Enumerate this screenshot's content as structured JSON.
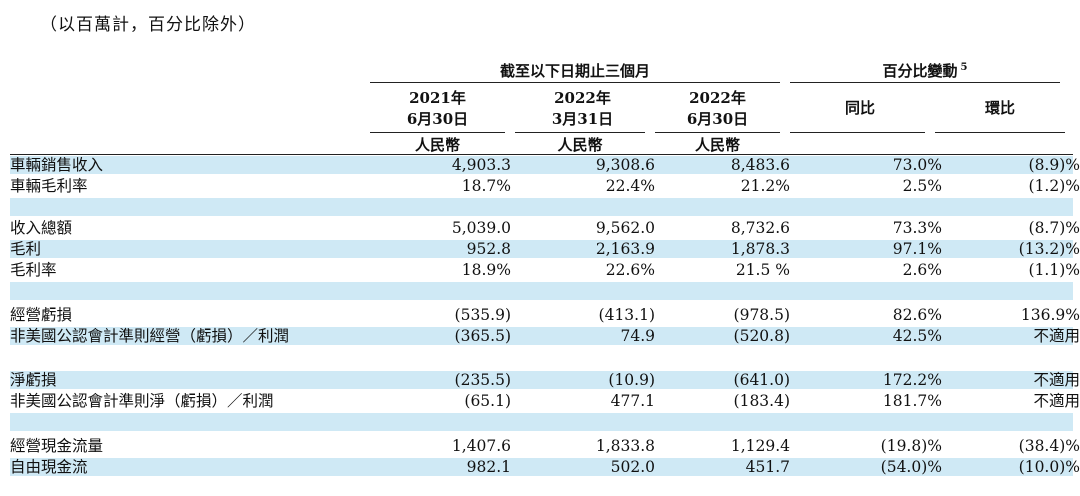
{
  "note": "（以百萬計，百分比除外）",
  "header": {
    "group1": "截至以下日期止三個月",
    "group2": "百分比變動",
    "group2_footnote": "5",
    "columns": [
      {
        "line1": "2021年",
        "line2": "6月30日",
        "currency": "人民幣"
      },
      {
        "line1": "2022年",
        "line2": "3月31日",
        "currency": "人民幣"
      },
      {
        "line1": "2022年",
        "line2": "6月30日",
        "currency": "人民幣"
      }
    ],
    "yoy": "同比",
    "qoq": "環比"
  },
  "rows": [
    {
      "label": "車輛銷售收入",
      "v": [
        "4,903.3",
        "9,308.6",
        "8,483.6",
        "73.0%",
        "(8.9)%"
      ]
    },
    {
      "label": "車輛毛利率",
      "v": [
        "18.7%",
        "22.4%",
        "21.2%",
        "2.5%",
        "(1.2)%"
      ]
    },
    {
      "label": "",
      "v": [
        "",
        "",
        "",
        "",
        ""
      ]
    },
    {
      "label": "收入總額",
      "v": [
        "5,039.0",
        "9,562.0",
        "8,732.6",
        "73.3%",
        "(8.7)%"
      ]
    },
    {
      "label": "毛利",
      "v": [
        "952.8",
        "2,163.9",
        "1,878.3",
        "97.1%",
        "(13.2)%"
      ]
    },
    {
      "label": "毛利率",
      "v": [
        "18.9%",
        "22.6%",
        "21.5 %",
        "2.6%",
        "(1.1)%"
      ]
    },
    {
      "label": "",
      "v": [
        "",
        "",
        "",
        "",
        ""
      ]
    },
    {
      "label": "經營虧損",
      "v": [
        "(535.9)",
        "(413.1)",
        "(978.5)",
        "82.6%",
        "136.9%"
      ]
    },
    {
      "label": "非美國公認會計準則經營（虧損）／利潤",
      "v": [
        "(365.5)",
        "74.9",
        "(520.8)",
        "42.5%",
        "不適用"
      ]
    },
    {
      "label": "",
      "v": [
        "",
        "",
        "",
        "",
        ""
      ]
    },
    {
      "label": "淨虧損",
      "v": [
        "(235.5)",
        "(10.9)",
        "(641.0)",
        "172.2%",
        "不適用"
      ]
    },
    {
      "label": "非美國公認會計準則淨（虧損）／利潤",
      "v": [
        "(65.1)",
        "477.1",
        "(183.4)",
        "181.7%",
        "不適用"
      ]
    },
    {
      "label": "",
      "v": [
        "",
        "",
        "",
        "",
        ""
      ]
    },
    {
      "label": "經營現金流量",
      "v": [
        "1,407.6",
        "1,833.8",
        "1,129.4",
        "(19.8)%",
        "(38.4)%"
      ]
    },
    {
      "label": "自由現金流",
      "v": [
        "982.1",
        "502.0",
        "451.7",
        "(54.0)%",
        "(10.0)%"
      ]
    }
  ]
}
